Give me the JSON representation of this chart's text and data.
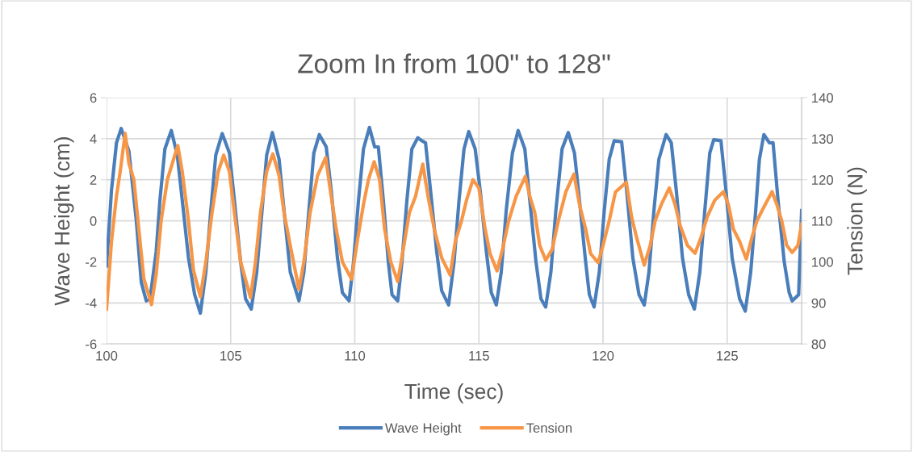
{
  "chart_data": {
    "type": "line",
    "title": "Zoom In from 100\" to 128\"",
    "xlabel": "Time (sec)",
    "ylabel": "Wave Height (cm)",
    "y2label": "Tension (N)",
    "xlim": [
      100,
      128
    ],
    "xticks": [
      100,
      105,
      110,
      115,
      120,
      125
    ],
    "ylim": [
      -6,
      6
    ],
    "yticks": [
      -6,
      -4,
      -2,
      0,
      2,
      4,
      6
    ],
    "y2lim": [
      80,
      140
    ],
    "y2ticks": [
      80,
      90,
      100,
      110,
      120,
      130,
      140
    ],
    "grid": true,
    "legend": "bottom",
    "marker": "none",
    "line_style": "solid",
    "series": [
      {
        "name": "Wave Height",
        "color": "#4a7ebb",
        "x": [
          100.0,
          100.2,
          100.4,
          100.59,
          100.9,
          101.2,
          101.4,
          101.6,
          101.75,
          102.0,
          102.15,
          102.35,
          102.61,
          102.85,
          103.05,
          103.3,
          103.55,
          103.78,
          104.0,
          104.2,
          104.4,
          104.66,
          104.95,
          105.15,
          105.4,
          105.6,
          105.83,
          106.05,
          106.25,
          106.45,
          106.68,
          106.95,
          107.15,
          107.4,
          107.75,
          107.95,
          108.15,
          108.35,
          108.57,
          108.85,
          109.05,
          109.3,
          109.5,
          109.77,
          109.95,
          110.15,
          110.35,
          110.59,
          110.8,
          110.95,
          111.15,
          111.35,
          111.5,
          111.73,
          111.9,
          112.1,
          112.3,
          112.54,
          112.7,
          112.85,
          113.05,
          113.3,
          113.5,
          113.78,
          114.0,
          114.2,
          114.4,
          114.59,
          114.85,
          115.05,
          115.3,
          115.5,
          115.7,
          115.9,
          116.1,
          116.35,
          116.58,
          116.85,
          117.05,
          117.3,
          117.5,
          117.69,
          117.9,
          118.1,
          118.35,
          118.6,
          118.85,
          119.05,
          119.3,
          119.45,
          119.64,
          119.85,
          120.05,
          120.25,
          120.45,
          120.75,
          120.95,
          121.2,
          121.45,
          121.66,
          121.85,
          122.05,
          122.25,
          122.54,
          122.75,
          122.95,
          123.2,
          123.45,
          123.68,
          123.9,
          124.1,
          124.3,
          124.46,
          124.75,
          124.95,
          125.2,
          125.5,
          125.73,
          125.95,
          126.15,
          126.3,
          126.48,
          126.7,
          126.85,
          127.05,
          127.3,
          127.5,
          127.62,
          127.88,
          128.0
        ],
        "values": [
          -2.2,
          1.5,
          3.8,
          4.5,
          3.4,
          0,
          -3.0,
          -3.9,
          -3.8,
          -1.5,
          1.0,
          3.5,
          4.4,
          3.2,
          1.0,
          -1.8,
          -3.6,
          -4.5,
          -2.5,
          0.5,
          3.2,
          4.25,
          3.3,
          1.0,
          -2.0,
          -3.8,
          -4.3,
          -2.5,
          0.3,
          3.2,
          4.3,
          3.0,
          0.5,
          -2.5,
          -3.9,
          -2.5,
          0.5,
          3.3,
          4.2,
          3.6,
          1.5,
          -1.8,
          -3.5,
          -3.9,
          -2.0,
          1.0,
          3.5,
          4.55,
          3.6,
          3.6,
          1.0,
          -2.0,
          -3.6,
          -3.9,
          -2.0,
          1.0,
          3.5,
          4.05,
          3.9,
          3.8,
          1.5,
          -1.5,
          -3.4,
          -4.1,
          -2.0,
          1.0,
          3.5,
          4.35,
          3.5,
          1.5,
          -1.5,
          -3.5,
          -4.1,
          -2.5,
          0.5,
          3.3,
          4.4,
          3.5,
          1.0,
          -2.0,
          -3.8,
          -4.2,
          -2.5,
          0.5,
          3.5,
          4.3,
          3.3,
          1.0,
          -2.0,
          -3.6,
          -4.2,
          -2.5,
          0.5,
          3.0,
          3.9,
          3.85,
          1.5,
          -1.8,
          -3.6,
          -4.1,
          -2.5,
          0.5,
          3.0,
          4.2,
          3.8,
          1.5,
          -1.8,
          -3.6,
          -4.3,
          -2.5,
          0.5,
          3.3,
          3.95,
          3.9,
          1.5,
          -1.8,
          -3.8,
          -4.4,
          -2.5,
          0.5,
          3.0,
          4.2,
          3.8,
          3.8,
          1.0,
          -2.0,
          -3.5,
          -3.9,
          -3.6,
          0.5
        ]
      },
      {
        "name": "Tension",
        "color": "#f79646",
        "axis": "y2",
        "x": [
          100.0,
          100.2,
          100.4,
          100.55,
          100.75,
          100.9,
          101.1,
          101.3,
          101.5,
          101.81,
          102.0,
          102.2,
          102.45,
          102.87,
          103.05,
          103.3,
          103.5,
          103.78,
          104.0,
          104.25,
          104.5,
          104.72,
          104.95,
          105.15,
          105.4,
          105.8,
          106.0,
          106.2,
          106.45,
          106.7,
          106.95,
          107.15,
          107.4,
          107.75,
          107.95,
          108.2,
          108.5,
          108.83,
          109.0,
          109.25,
          109.5,
          109.87,
          110.1,
          110.35,
          110.55,
          110.78,
          111.0,
          111.2,
          111.45,
          111.73,
          111.95,
          112.2,
          112.45,
          112.74,
          112.95,
          113.2,
          113.5,
          113.84,
          114.05,
          114.3,
          114.5,
          114.76,
          115.0,
          115.25,
          115.45,
          115.73,
          115.95,
          116.2,
          116.5,
          116.87,
          117.05,
          117.25,
          117.45,
          117.69,
          117.95,
          118.2,
          118.5,
          118.83,
          119.05,
          119.3,
          119.5,
          119.8,
          120.0,
          120.25,
          120.5,
          120.94,
          121.15,
          121.35,
          121.66,
          121.9,
          122.1,
          122.35,
          122.67,
          122.9,
          123.1,
          123.4,
          123.71,
          123.95,
          124.2,
          124.5,
          124.85,
          125.05,
          125.25,
          125.5,
          125.77,
          126.0,
          126.2,
          126.45,
          126.81,
          127.0,
          127.2,
          127.4,
          127.62,
          127.85,
          128.0
        ],
        "values": [
          88.5,
          105,
          116,
          122,
          131.3,
          124,
          120,
          108,
          96,
          89.6,
          97,
          110,
          120,
          128.3,
          122,
          110,
          98,
          91.5,
          100,
          112,
          122,
          126,
          122,
          112,
          100,
          91.3,
          100,
          112,
          122,
          126.3,
          121,
          112,
          104,
          93.3,
          100,
          112,
          121,
          125.4,
          118,
          108,
          100,
          95.8,
          105,
          114,
          120,
          124.4,
          120,
          108,
          100,
          95.2,
          103,
          112,
          116,
          123.8,
          116,
          108,
          101,
          96.8,
          105,
          110,
          115,
          120,
          118,
          108,
          102,
          97.8,
          103,
          110,
          116,
          120.8,
          116,
          112,
          104,
          100.4,
          103,
          110,
          117,
          121.4,
          114,
          108,
          102,
          99.8,
          104,
          110,
          117,
          119.4,
          111,
          106,
          99.2,
          104,
          110,
          114,
          118,
          114,
          109,
          104,
          102.1,
          106,
          111,
          115,
          117.1,
          114,
          108,
          105,
          100.7,
          106,
          110,
          113,
          117.1,
          114,
          110,
          104,
          102.3,
          104,
          109.2
        ]
      }
    ]
  }
}
